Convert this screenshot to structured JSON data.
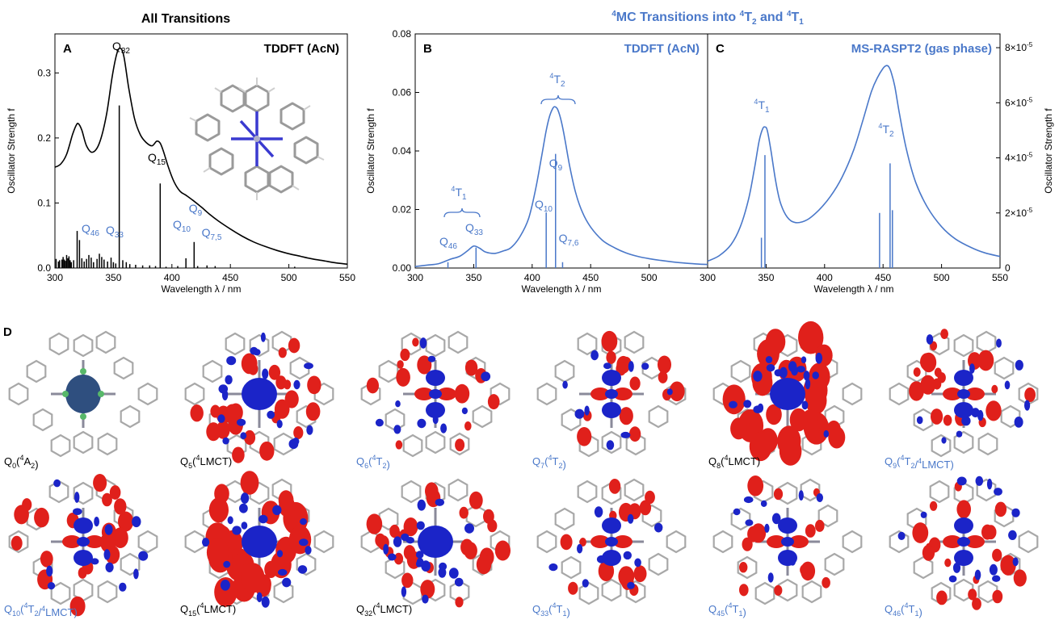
{
  "colors": {
    "black": "#000000",
    "blue": "#4a78c9",
    "red": "#e0201b",
    "navy": "#1b24c8"
  },
  "chart_data": [
    {
      "type": "line",
      "panel": "A",
      "title": "All Transitions",
      "method": "TDDFT (AcN)",
      "xlabel": "Wavelength λ / nm",
      "ylabel": "Oscillator Strength f",
      "xlim": [
        300,
        550
      ],
      "ylim": [
        0,
        0.36
      ],
      "xticks": [
        "300",
        "350",
        "400",
        "450",
        "500",
        "550"
      ],
      "yticks": [
        "0.0",
        "0.1",
        "0.2",
        "0.3"
      ],
      "spectrum": {
        "x": [
          300,
          305,
          310,
          315,
          318,
          320,
          323,
          327,
          332,
          338,
          344,
          349,
          353,
          356,
          359,
          363,
          368,
          373,
          378,
          383,
          387,
          390,
          393,
          397,
          402,
          407,
          412,
          418,
          425,
          432,
          440,
          450,
          460,
          470,
          480,
          490,
          500,
          510,
          520,
          530,
          540,
          550
        ],
        "y": [
          0.155,
          0.16,
          0.175,
          0.205,
          0.219,
          0.222,
          0.212,
          0.188,
          0.178,
          0.192,
          0.235,
          0.295,
          0.33,
          0.338,
          0.325,
          0.278,
          0.23,
          0.205,
          0.193,
          0.188,
          0.195,
          0.192,
          0.178,
          0.155,
          0.132,
          0.118,
          0.112,
          0.104,
          0.094,
          0.083,
          0.072,
          0.06,
          0.049,
          0.04,
          0.033,
          0.027,
          0.022,
          0.018,
          0.014,
          0.011,
          0.008,
          0.006
        ]
      },
      "sticks": [
        [
          301,
          0.014
        ],
        [
          303,
          0.01
        ],
        [
          304,
          0.012
        ],
        [
          306,
          0.013
        ],
        [
          307,
          0.017
        ],
        [
          308,
          0.013
        ],
        [
          309,
          0.011
        ],
        [
          310,
          0.02
        ],
        [
          311,
          0.015
        ],
        [
          312,
          0.018
        ],
        [
          313,
          0.012
        ],
        [
          314,
          0.009
        ],
        [
          316,
          0.012
        ],
        [
          319,
          0.057
        ],
        [
          321,
          0.043
        ],
        [
          323,
          0.015
        ],
        [
          325,
          0.01
        ],
        [
          327,
          0.014
        ],
        [
          329,
          0.02
        ],
        [
          331,
          0.016
        ],
        [
          333,
          0.009
        ],
        [
          336,
          0.014
        ],
        [
          338,
          0.022
        ],
        [
          340,
          0.017
        ],
        [
          342,
          0.013
        ],
        [
          345,
          0.01
        ],
        [
          348,
          0.016
        ],
        [
          350,
          0.009
        ],
        [
          352,
          0.007
        ],
        [
          355,
          0.25
        ],
        [
          358,
          0.012
        ],
        [
          361,
          0.009
        ],
        [
          364,
          0.006
        ],
        [
          369,
          0.005
        ],
        [
          375,
          0.004
        ],
        [
          381,
          0.004
        ],
        [
          386,
          0.003
        ],
        [
          390,
          0.13
        ],
        [
          395,
          0.002
        ],
        [
          405,
          0.003
        ],
        [
          412,
          0.015
        ],
        [
          419,
          0.04
        ],
        [
          422,
          0.003
        ],
        [
          430,
          0.004
        ],
        [
          437,
          0.003
        ],
        [
          505,
          0.002
        ]
      ],
      "annotations": [
        {
          "text": "Q",
          "sub": "32",
          "x": 355,
          "color": "black"
        },
        {
          "text": "Q",
          "sub": "15",
          "x": 390,
          "color": "black"
        },
        {
          "text": "Q",
          "sub": "46",
          "x": 328,
          "color": "blue"
        },
        {
          "text": "Q",
          "sub": "33",
          "x": 352,
          "color": "blue"
        },
        {
          "text": "Q",
          "sub": "10",
          "x": 412,
          "color": "blue"
        },
        {
          "text": "Q",
          "sub": "9",
          "x": 420,
          "color": "blue"
        },
        {
          "text": "Q",
          "sub": "7,5",
          "x": 432,
          "color": "blue"
        }
      ]
    },
    {
      "type": "line",
      "panel": "B",
      "group_title": "MC Transitions into T and T",
      "method": "TDDFT (AcN)",
      "xlabel": "Wavelength λ / nm",
      "ylabel": "Oscillator Strength f",
      "xlim": [
        300,
        550
      ],
      "ylim": [
        0,
        0.08
      ],
      "xticks": [
        "300",
        "350",
        "400",
        "450",
        "500",
        "550"
      ],
      "yticks": [
        "0.00",
        "0.02",
        "0.04",
        "0.06",
        "0.08"
      ],
      "spectrum": {
        "x": [
          300,
          310,
          320,
          330,
          338,
          345,
          350,
          355,
          360,
          368,
          375,
          382,
          390,
          397,
          403,
          408,
          412,
          415,
          418,
          420,
          422,
          425,
          428,
          432,
          437,
          443,
          450,
          460,
          470,
          480,
          490,
          500,
          510,
          520,
          530,
          540,
          550
        ],
        "y": [
          0.0005,
          0.001,
          0.0015,
          0.003,
          0.004,
          0.006,
          0.0075,
          0.0068,
          0.0055,
          0.005,
          0.0058,
          0.007,
          0.011,
          0.017,
          0.027,
          0.038,
          0.047,
          0.052,
          0.0548,
          0.055,
          0.054,
          0.05,
          0.044,
          0.035,
          0.026,
          0.019,
          0.014,
          0.0095,
          0.007,
          0.0052,
          0.004,
          0.0032,
          0.0026,
          0.0021,
          0.0017,
          0.0014,
          0.0012
        ]
      },
      "sticks": [
        [
          328,
          0.002
        ],
        [
          352,
          0.007
        ],
        [
          412,
          0.019
        ],
        [
          420,
          0.039
        ],
        [
          426,
          0.002
        ]
      ],
      "annotations": [
        {
          "text": "Q",
          "sub": "46",
          "x": 328,
          "color": "blue"
        },
        {
          "text": "Q",
          "sub": "33",
          "x": 352,
          "color": "blue"
        },
        {
          "text": "Q",
          "sub": "10",
          "x": 412,
          "color": "blue"
        },
        {
          "text": "Q",
          "sub": "9",
          "x": 420,
          "color": "blue"
        },
        {
          "text": "Q",
          "sub": "7,6",
          "x": 428,
          "color": "blue"
        },
        {
          "text": "T",
          "pre": "4",
          "sub": "1",
          "x": 340,
          "color": "blue"
        },
        {
          "text": "T",
          "pre": "4",
          "sub": "2",
          "x": 420,
          "color": "blue"
        }
      ]
    },
    {
      "type": "line",
      "panel": "C",
      "method": "MS-RASPT2 (gas phase)",
      "xlabel": "Wavelength λ / nm",
      "ylabel": "Oscillator Strength f",
      "xlim": [
        300,
        550
      ],
      "ylim": [
        0,
        8.5e-05
      ],
      "xticks": [
        "300",
        "350",
        "400",
        "450",
        "500",
        "550"
      ],
      "yticks": [
        "0",
        "2×10",
        "4×10",
        "6×10",
        "8×10"
      ],
      "ytick_exp": "-5",
      "spectrum": {
        "x": [
          300,
          310,
          320,
          328,
          335,
          340,
          344,
          347,
          349,
          351,
          354,
          358,
          362,
          368,
          375,
          385,
          395,
          405,
          415,
          425,
          433,
          440,
          445,
          450,
          453,
          455,
          457,
          460,
          464,
          470,
          478,
          488,
          500,
          512,
          525,
          537,
          550
        ],
        "y": [
          2.5e-06,
          4.5e-06,
          8.5e-06,
          1.5e-05,
          2.5e-05,
          3.6e-05,
          4.6e-05,
          5.05e-05,
          5.12e-05,
          5e-05,
          4.3e-05,
          3.2e-05,
          2.4e-05,
          1.85e-05,
          1.65e-05,
          1.75e-05,
          2.1e-05,
          2.6e-05,
          3.3e-05,
          4.3e-05,
          5.4e-05,
          6.4e-05,
          6.9e-05,
          7.25e-05,
          7.35e-05,
          7.3e-05,
          7.1e-05,
          6.6e-05,
          5.6e-05,
          4.3e-05,
          3.1e-05,
          2.2e-05,
          1.5e-05,
          1.05e-05,
          7.5e-06,
          5.5e-06,
          4.2e-06
        ]
      },
      "sticks": [
        [
          346,
          1.1e-05
        ],
        [
          349,
          4.1e-05
        ],
        [
          447,
          2e-05
        ],
        [
          456,
          3.8e-05
        ],
        [
          458,
          2.1e-05
        ]
      ],
      "annotations": [
        {
          "text": "T",
          "pre": "4",
          "sub": "1",
          "x": 349,
          "color": "blue"
        },
        {
          "text": "T",
          "pre": "4",
          "sub": "2",
          "x": 452,
          "color": "blue"
        }
      ]
    }
  ],
  "panel_d": {
    "label": "D",
    "states": [
      {
        "q": "Q",
        "sub": "0",
        "tail": "A",
        "tail_pre": "4",
        "tail_sub": "2",
        "extra": "",
        "extra_pre": "",
        "extra_sub": "",
        "blue": false,
        "kind": "ground"
      },
      {
        "q": "Q",
        "sub": "5",
        "tail": "LMCT",
        "tail_pre": "4",
        "tail_sub": "",
        "extra": "",
        "extra_pre": "",
        "extra_sub": "",
        "blue": false,
        "kind": "lmct"
      },
      {
        "q": "Q",
        "sub": "6",
        "tail": "T",
        "tail_pre": "4",
        "tail_sub": "2",
        "extra": "",
        "extra_pre": "",
        "extra_sub": "",
        "blue": true,
        "kind": "mc"
      },
      {
        "q": "Q",
        "sub": "7",
        "tail": "T",
        "tail_pre": "4",
        "tail_sub": "2",
        "extra": "",
        "extra_pre": "",
        "extra_sub": "",
        "blue": true,
        "kind": "mc"
      },
      {
        "q": "Q",
        "sub": "8",
        "tail": "LMCT",
        "tail_pre": "4",
        "tail_sub": "",
        "extra": "",
        "extra_pre": "",
        "extra_sub": "",
        "blue": false,
        "kind": "lmct2"
      },
      {
        "q": "Q",
        "sub": "9",
        "tail": "T",
        "tail_pre": "4",
        "tail_sub": "2",
        "extra": "LMCT",
        "extra_pre": "4",
        "extra_sub": "",
        "blue": true,
        "kind": "mix"
      },
      {
        "q": "Q",
        "sub": "10",
        "tail": "T",
        "tail_pre": "4",
        "tail_sub": "2",
        "extra": "LMCT",
        "extra_pre": "4",
        "extra_sub": "",
        "blue": true,
        "kind": "mix"
      },
      {
        "q": "Q",
        "sub": "15",
        "tail": "LMCT",
        "tail_pre": "4",
        "tail_sub": "",
        "extra": "",
        "extra_pre": "",
        "extra_sub": "",
        "blue": false,
        "kind": "lmct2"
      },
      {
        "q": "Q",
        "sub": "32",
        "tail": "LMCT",
        "tail_pre": "4",
        "tail_sub": "",
        "extra": "",
        "extra_pre": "",
        "extra_sub": "",
        "blue": false,
        "kind": "lmct"
      },
      {
        "q": "Q",
        "sub": "33",
        "tail": "T",
        "tail_pre": "4",
        "tail_sub": "1",
        "extra": "",
        "extra_pre": "",
        "extra_sub": "",
        "blue": true,
        "kind": "mc1"
      },
      {
        "q": "Q",
        "sub": "45",
        "tail": "T",
        "tail_pre": "4",
        "tail_sub": "1",
        "extra": "",
        "extra_pre": "",
        "extra_sub": "",
        "blue": true,
        "kind": "mc1"
      },
      {
        "q": "Q",
        "sub": "46",
        "tail": "T",
        "tail_pre": "4",
        "tail_sub": "1",
        "extra": "",
        "extra_pre": "",
        "extra_sub": "",
        "blue": true,
        "kind": "mix"
      }
    ]
  }
}
